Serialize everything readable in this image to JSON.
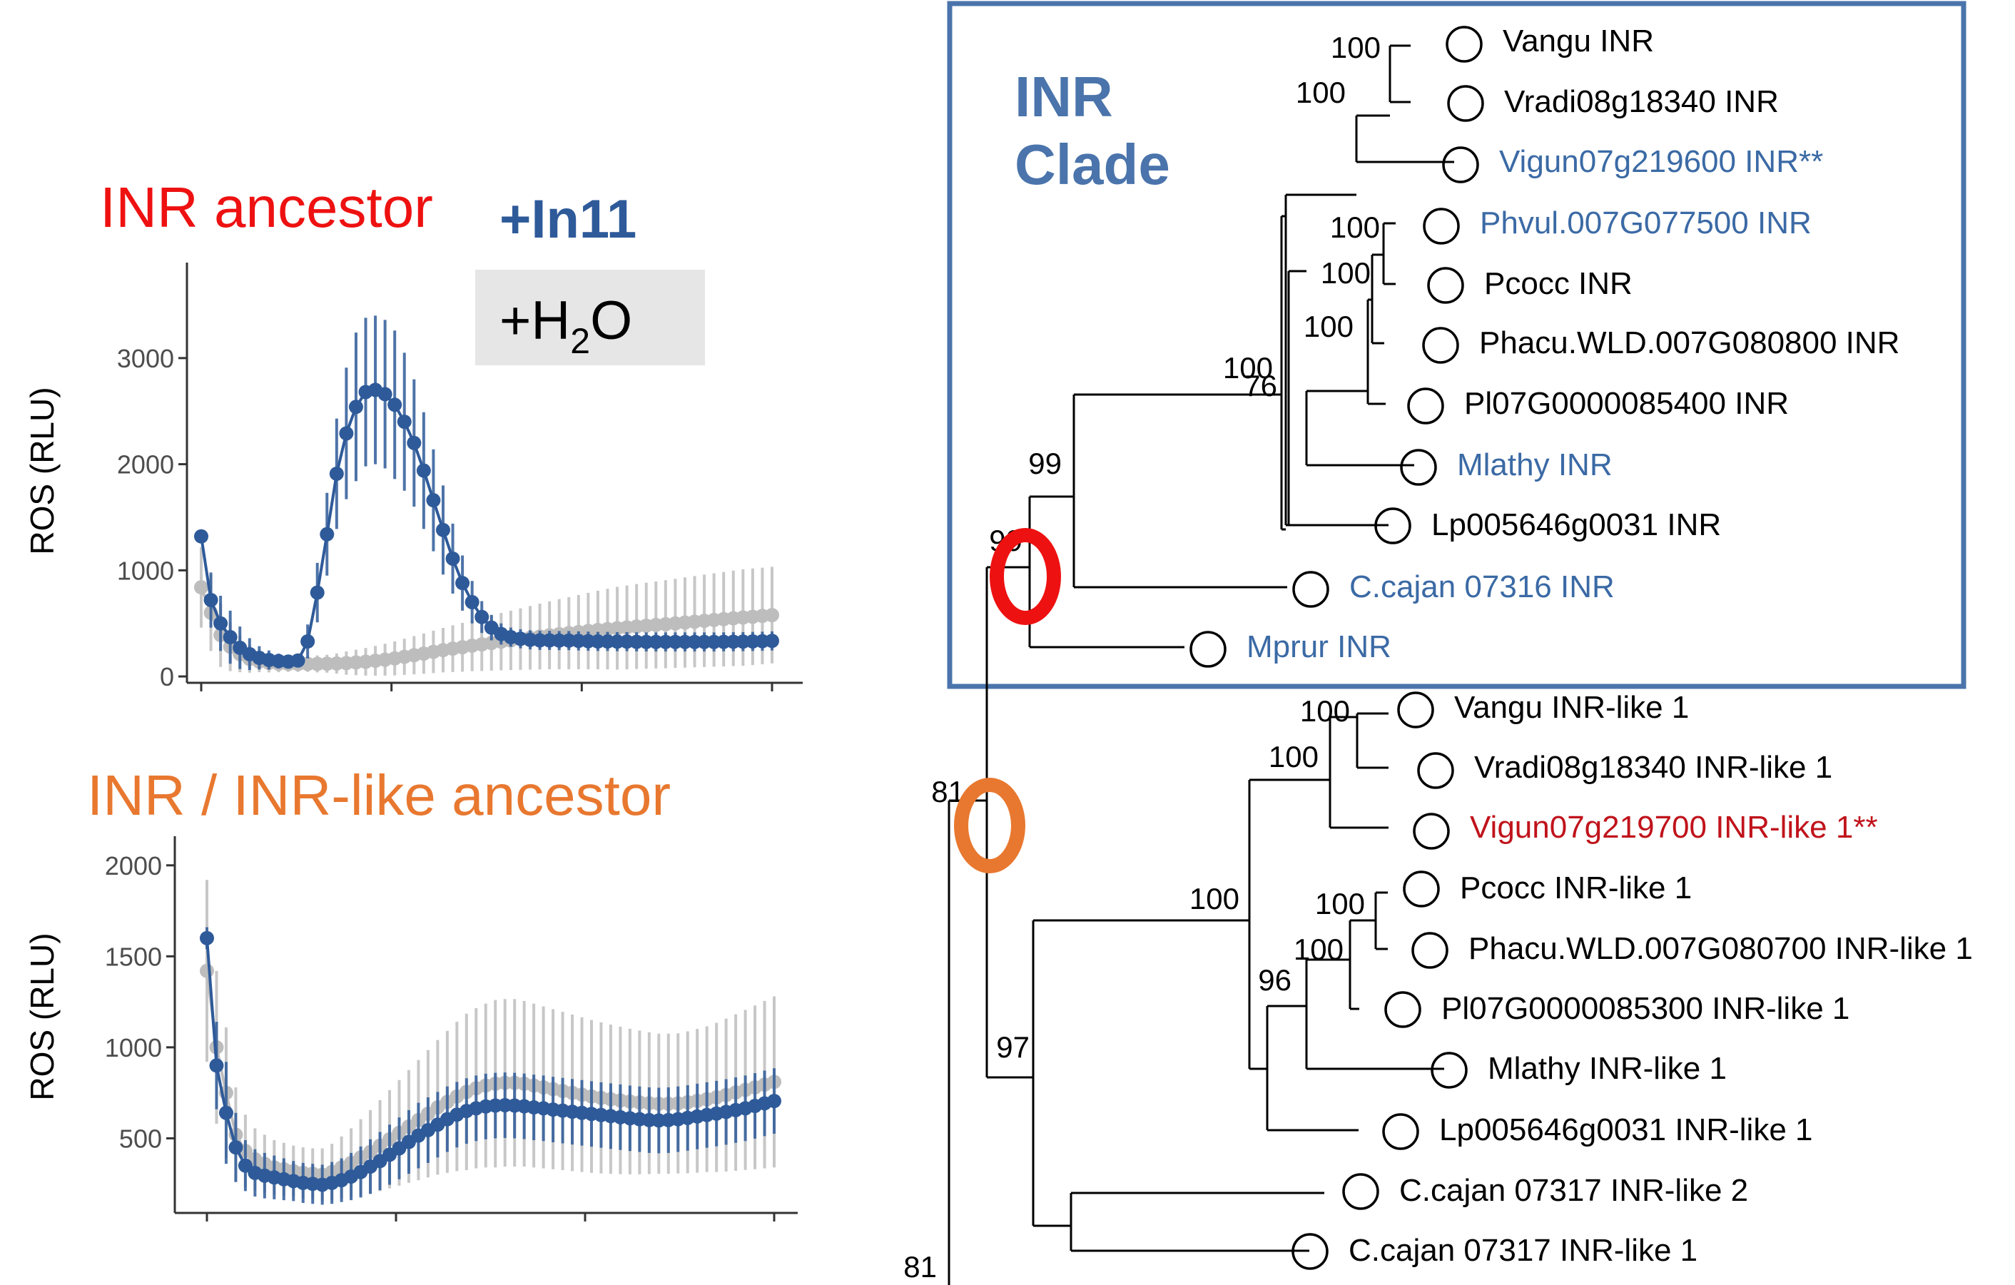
{
  "colors": {
    "in11": "#2e5a99",
    "h2o": "#bdbdbd",
    "inr_title": "#ee1111",
    "inr_like_title": "#e8782f",
    "clade_box": "#4a74ab",
    "blue_label": "#3b6aa5",
    "red_label": "#c0131b",
    "red_ring": "#ee1111",
    "orange_ring": "#e8782f"
  },
  "legend": {
    "in11": "+In11",
    "h2o_prefix": "+H",
    "h2o_sub": "2",
    "h2o_suffix": "O"
  },
  "clade_label": [
    "INR",
    "Clade"
  ],
  "chart_data": [
    {
      "type": "line",
      "title": "INR ancestor",
      "ylabel": "ROS (RLU)",
      "xlabel": "",
      "ylim": [
        -60,
        3900
      ],
      "yticks": [
        0,
        1000,
        2000,
        3000
      ],
      "n_points": 60,
      "grid": false,
      "series": [
        {
          "name": "+In11",
          "values": [
            1320,
            720,
            500,
            370,
            270,
            210,
            175,
            155,
            145,
            140,
            150,
            330,
            790,
            1340,
            1910,
            2290,
            2540,
            2680,
            2700,
            2660,
            2560,
            2400,
            2200,
            1940,
            1660,
            1380,
            1110,
            880,
            700,
            560,
            460,
            400,
            370,
            355,
            345,
            340,
            340,
            338,
            338,
            335,
            332,
            330,
            330,
            328,
            328,
            326,
            325,
            325,
            325,
            325,
            325,
            325,
            325,
            325,
            326,
            327,
            328,
            330,
            332,
            335
          ],
          "errors": [
            60,
            260,
            260,
            250,
            200,
            150,
            110,
            90,
            70,
            60,
            60,
            160,
            280,
            390,
            520,
            620,
            700,
            700,
            700,
            700,
            700,
            650,
            600,
            550,
            480,
            420,
            330,
            260,
            200,
            150,
            120,
            100,
            90,
            90,
            90,
            90,
            90,
            90,
            90,
            90,
            90,
            90,
            90,
            90,
            90,
            90,
            90,
            90,
            90,
            90,
            90,
            90,
            90,
            90,
            90,
            90,
            90,
            90,
            90,
            90
          ]
        },
        {
          "name": "+H2O",
          "values": [
            840,
            600,
            390,
            280,
            210,
            165,
            140,
            128,
            120,
            118,
            118,
            118,
            118,
            120,
            122,
            126,
            132,
            138,
            148,
            158,
            170,
            185,
            200,
            215,
            232,
            248,
            262,
            275,
            290,
            302,
            315,
            328,
            340,
            352,
            364,
            376,
            388,
            398,
            408,
            418,
            428,
            438,
            446,
            454,
            462,
            470,
            478,
            485,
            492,
            500,
            508,
            516,
            524,
            532,
            540,
            548,
            555,
            562,
            570,
            578
          ],
          "errors": [
            380,
            360,
            300,
            230,
            170,
            130,
            100,
            90,
            80,
            75,
            75,
            75,
            80,
            85,
            95,
            110,
            120,
            130,
            140,
            150,
            160,
            170,
            180,
            190,
            200,
            210,
            220,
            230,
            240,
            250,
            260,
            270,
            280,
            290,
            300,
            310,
            320,
            330,
            340,
            350,
            360,
            370,
            380,
            390,
            395,
            400,
            405,
            410,
            415,
            420,
            425,
            430,
            435,
            440,
            445,
            450,
            455,
            455,
            455,
            455
          ]
        }
      ]
    },
    {
      "type": "line",
      "title": "INR / INR-like ancestor",
      "ylabel": "ROS (RLU)",
      "xlabel": "",
      "ylim": [
        90,
        2160
      ],
      "yticks": [
        500,
        1000,
        1500,
        2000
      ],
      "n_points": 60,
      "grid": false,
      "series": [
        {
          "name": "+In11",
          "values": [
            1600,
            900,
            640,
            450,
            350,
            310,
            295,
            285,
            275,
            265,
            255,
            250,
            245,
            255,
            270,
            290,
            315,
            345,
            375,
            410,
            445,
            480,
            515,
            545,
            575,
            605,
            630,
            650,
            665,
            675,
            680,
            682,
            680,
            676,
            670,
            665,
            658,
            652,
            646,
            640,
            634,
            628,
            622,
            616,
            610,
            605,
            600,
            598,
            600,
            605,
            612,
            620,
            628,
            636,
            645,
            655,
            665,
            678,
            692,
            705
          ],
          "errors": [
            60,
            240,
            280,
            190,
            140,
            130,
            125,
            120,
            115,
            110,
            110,
            110,
            110,
            115,
            120,
            130,
            140,
            150,
            160,
            165,
            170,
            175,
            180,
            180,
            180,
            180,
            180,
            180,
            180,
            180,
            180,
            180,
            180,
            180,
            180,
            180,
            180,
            180,
            180,
            180,
            180,
            180,
            180,
            180,
            180,
            180,
            180,
            180,
            180,
            180,
            180,
            180,
            180,
            180,
            180,
            180,
            180,
            180,
            180,
            180
          ]
        },
        {
          "name": "+H2O",
          "values": [
            1420,
            1000,
            750,
            520,
            430,
            385,
            360,
            340,
            330,
            320,
            310,
            305,
            300,
            315,
            340,
            365,
            395,
            425,
            460,
            495,
            530,
            565,
            600,
            635,
            670,
            700,
            730,
            755,
            775,
            790,
            800,
            805,
            805,
            800,
            790,
            780,
            770,
            760,
            750,
            740,
            730,
            722,
            715,
            708,
            702,
            697,
            693,
            690,
            690,
            692,
            698,
            706,
            715,
            725,
            738,
            752,
            766,
            780,
            795,
            810
          ],
          "errors": [
            500,
            420,
            360,
            260,
            200,
            170,
            160,
            150,
            145,
            140,
            140,
            140,
            145,
            155,
            170,
            190,
            210,
            230,
            250,
            270,
            290,
            310,
            330,
            350,
            370,
            390,
            410,
            430,
            440,
            450,
            460,
            460,
            460,
            455,
            450,
            445,
            440,
            435,
            430,
            425,
            420,
            415,
            410,
            405,
            400,
            395,
            390,
            385,
            385,
            385,
            390,
            395,
            400,
            410,
            420,
            430,
            440,
            450,
            460,
            470
          ]
        }
      ]
    },
    {
      "type": "tree",
      "title": "",
      "leaves": [
        {
          "label": "Vangu INR",
          "color": "black"
        },
        {
          "label": "Vradi08g18340 INR",
          "color": "black"
        },
        {
          "label": "Vigun07g219600 INR**",
          "color": "blue"
        },
        {
          "label": "Phvul.007G077500 INR",
          "color": "blue"
        },
        {
          "label": "Pcocc INR",
          "color": "black"
        },
        {
          "label": "Phacu.WLD.007G080800 INR",
          "color": "black"
        },
        {
          "label": "Pl07G0000085400 INR",
          "color": "black"
        },
        {
          "label": "Mlathy INR",
          "color": "blue"
        },
        {
          "label": "Lp005646g0031 INR",
          "color": "black"
        },
        {
          "label": "C.cajan 07316 INR",
          "color": "blue"
        },
        {
          "label": "Mprur INR",
          "color": "blue"
        },
        {
          "label": "Vangu INR-like 1",
          "color": "black"
        },
        {
          "label": "Vradi08g18340 INR-like 1",
          "color": "black"
        },
        {
          "label": "Vigun07g219700 INR-like 1**",
          "color": "red"
        },
        {
          "label": "Pcocc INR-like 1",
          "color": "black"
        },
        {
          "label": "Phacu.WLD.007G080700 INR-like 1",
          "color": "black"
        },
        {
          "label": "Pl07G0000085300 INR-like 1",
          "color": "black"
        },
        {
          "label": "Mlathy INR-like 1",
          "color": "black"
        },
        {
          "label": "Lp005646g0031 INR-like 1",
          "color": "black"
        },
        {
          "label": "C.cajan 07317 INR-like 2",
          "color": "black"
        },
        {
          "label": "C.cajan 07317 INR-like 1",
          "color": "black"
        }
      ],
      "bootstrap": [
        "100",
        "100",
        "100",
        "100",
        "100",
        "100",
        "76",
        "99",
        "99",
        "100",
        "100",
        "100",
        "100",
        "100",
        "96",
        "97",
        "81"
      ]
    }
  ]
}
